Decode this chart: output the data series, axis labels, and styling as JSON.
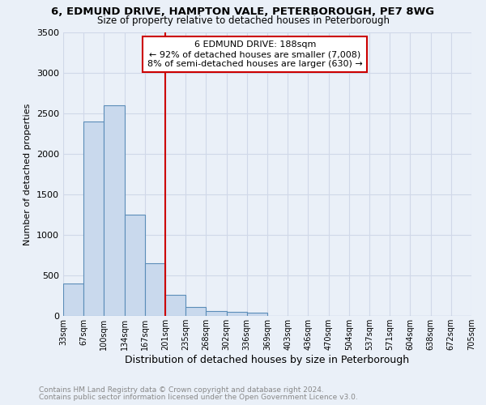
{
  "title1": "6, EDMUND DRIVE, HAMPTON VALE, PETERBOROUGH, PE7 8WG",
  "title2": "Size of property relative to detached houses in Peterborough",
  "xlabel": "Distribution of detached houses by size in Peterborough",
  "ylabel": "Number of detached properties",
  "footer1": "Contains HM Land Registry data © Crown copyright and database right 2024.",
  "footer2": "Contains public sector information licensed under the Open Government Licence v3.0.",
  "bar_values": [
    400,
    2400,
    2600,
    1250,
    650,
    260,
    110,
    60,
    50,
    40,
    0,
    0,
    0,
    0,
    0,
    0,
    0,
    0,
    0,
    0
  ],
  "bin_labels": [
    "33sqm",
    "67sqm",
    "100sqm",
    "134sqm",
    "167sqm",
    "201sqm",
    "235sqm",
    "268sqm",
    "302sqm",
    "336sqm",
    "369sqm",
    "403sqm",
    "436sqm",
    "470sqm",
    "504sqm",
    "537sqm",
    "571sqm",
    "604sqm",
    "638sqm",
    "672sqm",
    "705sqm"
  ],
  "bar_color": "#c9d9ed",
  "bar_edge_color": "#5b8db8",
  "bg_color": "#eaf0f8",
  "grid_color": "#d0d8e8",
  "vline_x": 5.0,
  "vline_color": "#cc0000",
  "annotation_title": "6 EDMUND DRIVE: 188sqm",
  "annotation_line1": "← 92% of detached houses are smaller (7,008)",
  "annotation_line2": "8% of semi-detached houses are larger (630) →",
  "annotation_box_color": "#ffffff",
  "annotation_box_edge": "#cc0000",
  "ylim": [
    0,
    3500
  ],
  "yticks": [
    0,
    500,
    1000,
    1500,
    2000,
    2500,
    3000,
    3500
  ]
}
